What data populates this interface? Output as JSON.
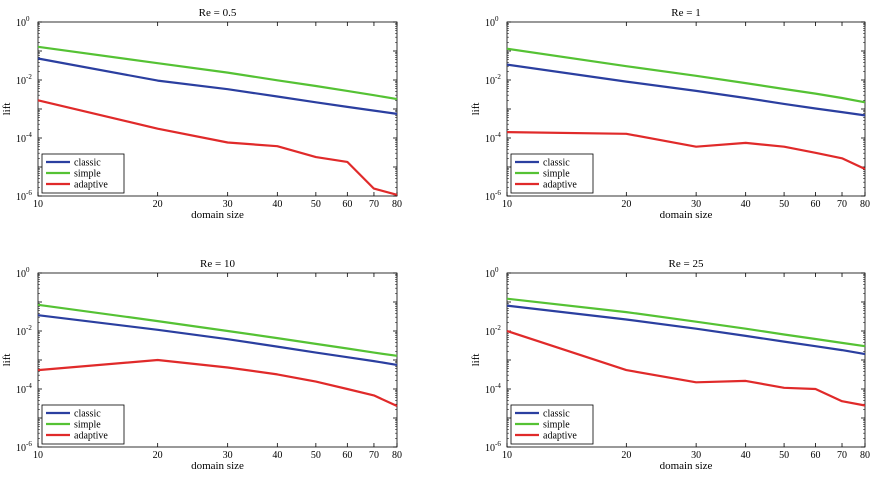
{
  "colors": {
    "classic": "#2b3fa0",
    "simple": "#55c234",
    "adaptive": "#e02a2a",
    "axis": "#000000",
    "background": "#ffffff"
  },
  "chart_data": [
    {
      "type": "line",
      "title": "Re = 0.5",
      "xlabel": "domain size",
      "ylabel": "lift",
      "xscale": "log",
      "yscale": "log",
      "xlim": [
        10,
        80
      ],
      "ylim": [
        1e-06,
        1
      ],
      "xticks": [
        10,
        20,
        30,
        40,
        50,
        60,
        70,
        80
      ],
      "ytick_labels": [
        {
          "value": 1,
          "base": "10",
          "exp": "0"
        },
        {
          "value": 0.01,
          "base": "10",
          "exp": "-2"
        },
        {
          "value": 0.0001,
          "base": "10",
          "exp": "-4"
        },
        {
          "value": 1e-06,
          "base": "10",
          "exp": "-6"
        }
      ],
      "legend": "bottom-left",
      "x": [
        10,
        20,
        30,
        40,
        50,
        60,
        70,
        80
      ],
      "series": [
        {
          "name": "classic",
          "values": [
            0.055,
            0.0095,
            0.0048,
            0.0027,
            0.0017,
            0.00118,
            0.00088,
            0.00068
          ]
        },
        {
          "name": "simple",
          "values": [
            0.14,
            0.038,
            0.018,
            0.0098,
            0.0062,
            0.0042,
            0.003,
            0.0022
          ]
        },
        {
          "name": "adaptive",
          "values": [
            0.002,
            0.00021,
            7e-05,
            5.2e-05,
            2.2e-05,
            1.5e-05,
            1.8e-06,
            1.1e-06
          ]
        }
      ]
    },
    {
      "type": "line",
      "title": "Re = 1",
      "xlabel": "domain size",
      "ylabel": "lift",
      "xscale": "log",
      "yscale": "log",
      "xlim": [
        10,
        80
      ],
      "ylim": [
        1e-06,
        1
      ],
      "xticks": [
        10,
        20,
        30,
        40,
        50,
        60,
        70,
        80
      ],
      "ytick_labels": [
        {
          "value": 1,
          "base": "10",
          "exp": "0"
        },
        {
          "value": 0.01,
          "base": "10",
          "exp": "-2"
        },
        {
          "value": 0.0001,
          "base": "10",
          "exp": "-4"
        },
        {
          "value": 1e-06,
          "base": "10",
          "exp": "-6"
        }
      ],
      "legend": "bottom-left",
      "x": [
        10,
        20,
        30,
        40,
        50,
        60,
        70,
        80
      ],
      "series": [
        {
          "name": "classic",
          "values": [
            0.034,
            0.0088,
            0.0042,
            0.0024,
            0.0015,
            0.00104,
            0.00078,
            0.0006
          ]
        },
        {
          "name": "simple",
          "values": [
            0.12,
            0.03,
            0.014,
            0.0078,
            0.0049,
            0.0034,
            0.0024,
            0.0017
          ]
        },
        {
          "name": "adaptive",
          "values": [
            0.00016,
            0.00014,
            5e-05,
            6.8e-05,
            5e-05,
            3.1e-05,
            2e-05,
            8.5e-06
          ]
        }
      ]
    },
    {
      "type": "line",
      "title": "Re = 10",
      "xlabel": "domain size",
      "ylabel": "lift",
      "xscale": "log",
      "yscale": "log",
      "xlim": [
        10,
        80
      ],
      "ylim": [
        1e-06,
        1
      ],
      "xticks": [
        10,
        20,
        30,
        40,
        50,
        60,
        70,
        80
      ],
      "ytick_labels": [
        {
          "value": 1,
          "base": "10",
          "exp": "0"
        },
        {
          "value": 0.01,
          "base": "10",
          "exp": "-2"
        },
        {
          "value": 0.0001,
          "base": "10",
          "exp": "-4"
        },
        {
          "value": 1e-06,
          "base": "10",
          "exp": "-6"
        }
      ],
      "legend": "bottom-left",
      "x": [
        10,
        20,
        30,
        40,
        50,
        60,
        70,
        80
      ],
      "series": [
        {
          "name": "classic",
          "values": [
            0.035,
            0.011,
            0.0052,
            0.0029,
            0.0018,
            0.00125,
            0.00092,
            0.00068
          ]
        },
        {
          "name": "simple",
          "values": [
            0.08,
            0.022,
            0.01,
            0.0057,
            0.0036,
            0.0025,
            0.0018,
            0.0014
          ]
        },
        {
          "name": "adaptive",
          "values": [
            0.00045,
            0.001,
            0.00055,
            0.00032,
            0.00018,
            0.0001,
            6e-05,
            2.6e-05
          ]
        }
      ]
    },
    {
      "type": "line",
      "title": "Re = 25",
      "xlabel": "domain size",
      "ylabel": "lift",
      "xscale": "log",
      "yscale": "log",
      "xlim": [
        10,
        80
      ],
      "ylim": [
        1e-06,
        1
      ],
      "xticks": [
        10,
        20,
        30,
        40,
        50,
        60,
        70,
        80
      ],
      "ytick_labels": [
        {
          "value": 1,
          "base": "10",
          "exp": "0"
        },
        {
          "value": 0.01,
          "base": "10",
          "exp": "-2"
        },
        {
          "value": 0.0001,
          "base": "10",
          "exp": "-4"
        },
        {
          "value": 1e-06,
          "base": "10",
          "exp": "-6"
        }
      ],
      "legend": "bottom-left",
      "x": [
        10,
        20,
        30,
        40,
        50,
        60,
        70,
        80
      ],
      "series": [
        {
          "name": "classic",
          "values": [
            0.075,
            0.025,
            0.012,
            0.0068,
            0.0043,
            0.003,
            0.0022,
            0.0016
          ]
        },
        {
          "name": "simple",
          "values": [
            0.13,
            0.045,
            0.021,
            0.012,
            0.0076,
            0.0053,
            0.0039,
            0.003
          ]
        },
        {
          "name": "adaptive",
          "values": [
            0.01,
            0.00045,
            0.00017,
            0.00019,
            0.00011,
            0.0001,
            3.8e-05,
            2.7e-05
          ]
        }
      ]
    }
  ]
}
